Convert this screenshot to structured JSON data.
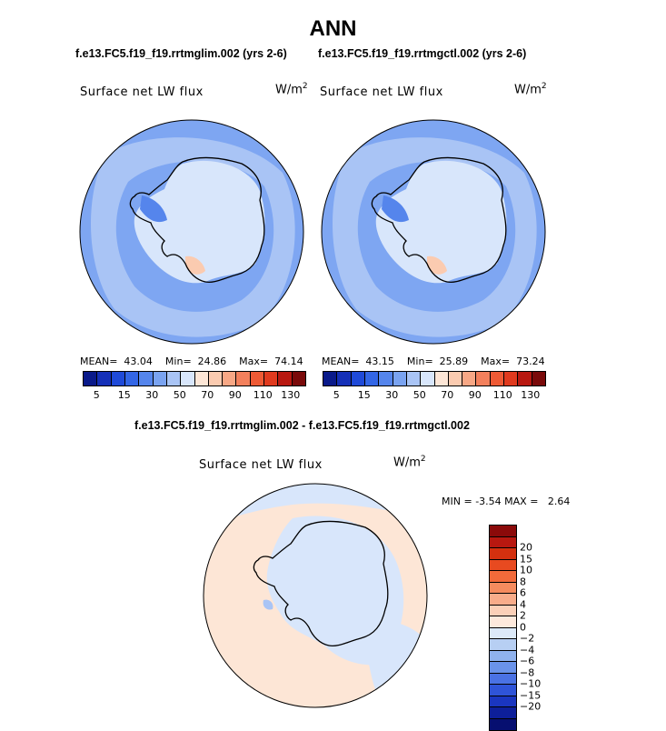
{
  "title": "ANN",
  "panels": [
    {
      "case": "f.e13.FC5.f19_f19.rrtmglim.002 (yrs 2-6)",
      "variable": "Surface net LW flux",
      "units_base": "W/m",
      "units_exp": "2",
      "mean_label": "MEAN=",
      "mean": "43.04",
      "min_label": "Min=",
      "min": "24.86",
      "max_label": "Max=",
      "max": "74.14"
    },
    {
      "case": "f.e13.FC5.f19_f19.rrtmgctl.002 (yrs 2-6)",
      "variable": "Surface net LW flux",
      "units_base": "W/m",
      "units_exp": "2",
      "mean_label": "MEAN=",
      "mean": "43.15",
      "min_label": "Min=",
      "min": "25.89",
      "max_label": "Max=",
      "max": "73.24"
    }
  ],
  "field_colorbar": {
    "colors": [
      "#0a1a8a",
      "#1530b8",
      "#1f4ad8",
      "#3366e6",
      "#5585ec",
      "#7aa3f0",
      "#a9c4f5",
      "#d8e6fb",
      "#fde6d6",
      "#fbcbb0",
      "#f7a785",
      "#f3805c",
      "#ee5a35",
      "#e03a1e",
      "#b81810",
      "#7a0a0a"
    ],
    "labels": [
      "5",
      "15",
      "30",
      "50",
      "70",
      "90",
      "110",
      "130"
    ]
  },
  "difference": {
    "case": "f.e13.FC5.f19_f19.rrtmglim.002 - f.e13.FC5.f19_f19.rrtmgctl.002",
    "variable": "Surface net LW flux",
    "units_base": "W/m",
    "units_exp": "2",
    "min_label": "MIN =",
    "min": "-3.54",
    "max_label": "MAX =",
    "max": "2.64"
  },
  "diff_colorbar": {
    "colors": [
      "#8b0a0a",
      "#b81810",
      "#d4300f",
      "#e84a20",
      "#f26a3a",
      "#f58b5e",
      "#f8ac8a",
      "#fbd0b8",
      "#fde9dc",
      "#dce9f8",
      "#b7cff3",
      "#8fb2ee",
      "#6a93ea",
      "#4a72e4",
      "#2f54d8",
      "#1a36c0",
      "#0d1f9a",
      "#060f70"
    ],
    "labels": [
      "20",
      "15",
      "10",
      "8",
      "6",
      "4",
      "2",
      "0",
      "−2",
      "−4",
      "−6",
      "−8",
      "−10",
      "−15",
      "−20"
    ]
  },
  "map_colors": {
    "ocean": "#7ea6f2",
    "ocean_light": "#a9c4f5",
    "coastal": "#5585ec",
    "interior": "#d8e6fb",
    "warm": "#fbcbb0",
    "diff_pos": "#fde6d6",
    "diff_neg": "#d8e6fb",
    "diff_neg2": "#a9c4f5"
  }
}
